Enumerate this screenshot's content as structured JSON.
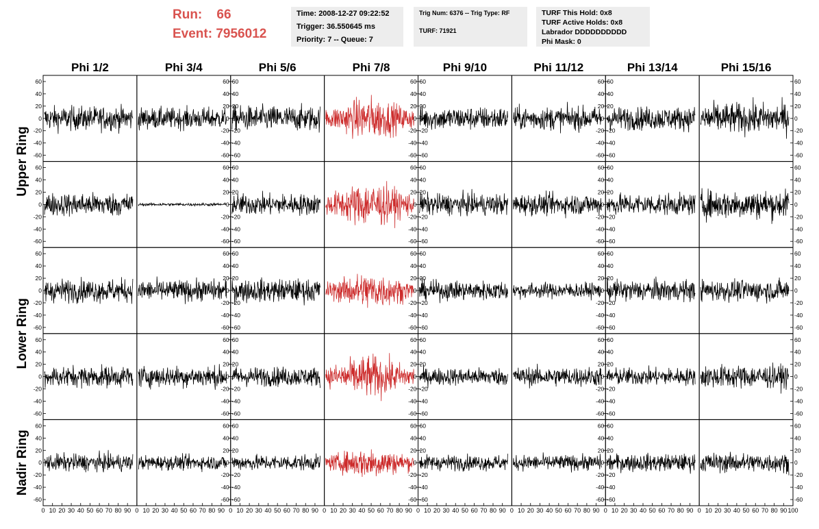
{
  "header": {
    "run_label": "Run:",
    "run_value": "66",
    "event_label": "Event:",
    "event_value": "7956012",
    "time_line": "Time: 2008-12-27 09:22:52",
    "trigger_line": "Trigger: 36.550645 ms",
    "priority_line": "Priority: 7 -- Queue: 7",
    "trig_line": "Trig Num: 6376 -- Trig Type: RF",
    "turf_line": "TURF: 71921",
    "hold_line": "TURF This Hold: 0x8",
    "active_holds_line": "TURF Active Holds: 0x8",
    "labrador_line": "Labrador DDDDDDDDDD",
    "phi_mask_line": "Phi Mask: 0"
  },
  "colors": {
    "accent": "#d9534f",
    "trace": "#000000",
    "highlight_trace": "#cc2a2a",
    "info_bg": "#ededed"
  },
  "chart_data": {
    "type": "line",
    "columns": [
      "Phi 1/2",
      "Phi 3/4",
      "Phi 5/6",
      "Phi 7/8",
      "Phi 9/10",
      "Phi 11/12",
      "Phi 13/14",
      "Phi 15/16"
    ],
    "rows": [
      "Upper Ring",
      "Lower Ring",
      "Nadir Ring"
    ],
    "panel_rows": 5,
    "highlight_column": "Phi 7/8",
    "ylim": [
      -70,
      70
    ],
    "xlim": [
      0,
      100
    ],
    "yticks": [
      -60,
      -40,
      -20,
      0,
      20,
      40,
      60
    ],
    "ytick_labels": [
      "-60",
      "-40",
      "-20",
      "0",
      "20",
      "40",
      "60"
    ],
    "xtick_labels": [
      "0",
      "10",
      "20",
      "30",
      "40",
      "50",
      "60",
      "70",
      "80",
      "90",
      "100"
    ],
    "amplitude": [
      [
        25,
        22,
        26,
        30,
        24,
        24,
        24,
        32
      ],
      [
        24,
        3,
        22,
        32,
        22,
        22,
        22,
        30
      ],
      [
        24,
        22,
        24,
        26,
        20,
        16,
        22,
        22
      ],
      [
        22,
        22,
        20,
        30,
        18,
        20,
        18,
        24
      ],
      [
        18,
        15,
        16,
        22,
        16,
        16,
        18,
        20
      ]
    ]
  }
}
